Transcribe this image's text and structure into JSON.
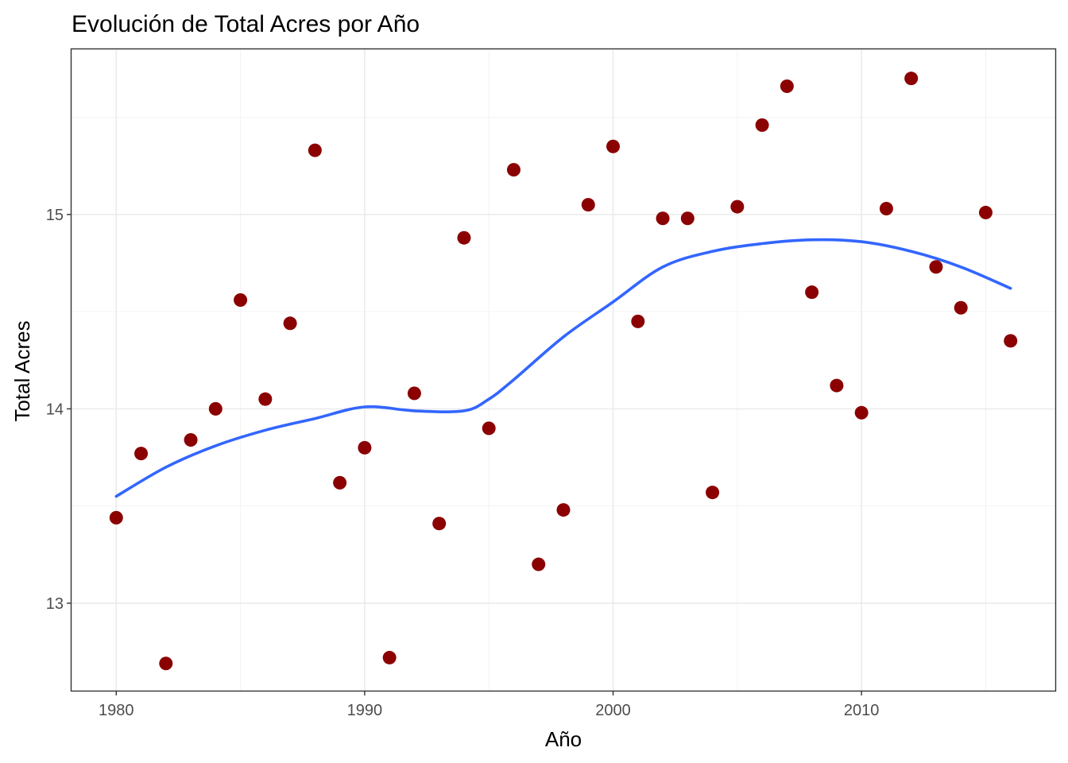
{
  "chart_data": {
    "type": "scatter",
    "title": "Evolución de Total Acres por Año",
    "xlabel": "Año",
    "ylabel": "Total Acres",
    "xlim": [
      1978.2,
      2017.8
    ],
    "ylim": [
      12.55,
      15.85
    ],
    "x_ticks": [
      1980,
      1990,
      2000,
      2010
    ],
    "y_ticks": [
      13,
      14,
      15
    ],
    "x_tick_labels": [
      "1980",
      "1990",
      "2000",
      "2010"
    ],
    "y_tick_labels": [
      "13",
      "14",
      "15"
    ],
    "grid": true,
    "legend": "none",
    "point_color": "#8B0000",
    "line_color": "#3366FF",
    "series": [
      {
        "type": "points",
        "x": [
          1980,
          1981,
          1982,
          1983,
          1984,
          1985,
          1986,
          1987,
          1988,
          1989,
          1990,
          1991,
          1992,
          1993,
          1994,
          1995,
          1996,
          1997,
          1998,
          1999,
          2000,
          2001,
          2002,
          2003,
          2004,
          2005,
          2006,
          2007,
          2008,
          2009,
          2010,
          2011,
          2012,
          2013,
          2014,
          2015,
          2016
        ],
        "y": [
          13.44,
          13.77,
          12.69,
          13.84,
          14.0,
          14.56,
          14.05,
          14.44,
          15.33,
          13.62,
          13.8,
          12.72,
          14.08,
          13.41,
          14.88,
          13.9,
          15.23,
          13.2,
          13.48,
          15.05,
          15.35,
          14.45,
          14.98,
          14.98,
          13.57,
          15.04,
          15.46,
          15.66,
          14.6,
          14.12,
          13.98,
          15.03,
          15.7,
          14.73,
          14.52,
          15.01,
          14.35
        ]
      },
      {
        "type": "smooth",
        "x": [
          1980,
          1982,
          1984,
          1986,
          1988,
          1990,
          1992,
          1994,
          1995,
          1996,
          1998,
          2000,
          2002,
          2004,
          2006,
          2008,
          2010,
          2012,
          2014,
          2016
        ],
        "y": [
          13.55,
          13.7,
          13.81,
          13.89,
          13.95,
          14.01,
          13.99,
          13.99,
          14.05,
          14.15,
          14.37,
          14.55,
          14.73,
          14.81,
          14.85,
          14.87,
          14.86,
          14.81,
          14.73,
          14.62
        ]
      }
    ]
  }
}
